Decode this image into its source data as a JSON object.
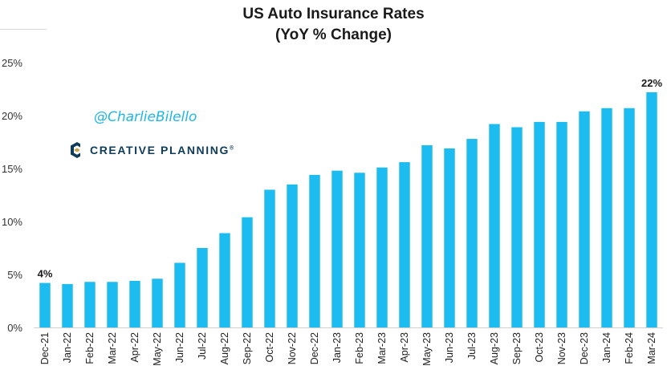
{
  "chart_data": {
    "type": "bar",
    "title": "US Auto Insurance Rates",
    "subtitle": "(YoY % Change)",
    "xlabel": "",
    "ylabel": "",
    "ylim": [
      0,
      25
    ],
    "yticks": [
      "0%",
      "5%",
      "10%",
      "15%",
      "20%",
      "25%"
    ],
    "grid": false,
    "bar_color": "#1cbcf0",
    "categories": [
      "Dec-21",
      "Jan-22",
      "Feb-22",
      "Mar-22",
      "Apr-22",
      "May-22",
      "Jun-22",
      "Jul-22",
      "Aug-22",
      "Sep-22",
      "Oct-22",
      "Nov-22",
      "Dec-22",
      "Jan-23",
      "Feb-23",
      "Mar-23",
      "Apr-23",
      "May-23",
      "Jun-23",
      "Jul-23",
      "Aug-23",
      "Sep-23",
      "Oct-23",
      "Nov-23",
      "Dec-23",
      "Jan-24",
      "Feb-24",
      "Mar-24"
    ],
    "values": [
      4.2,
      4.1,
      4.3,
      4.3,
      4.4,
      4.6,
      6.1,
      7.5,
      8.9,
      10.4,
      13.0,
      13.5,
      14.4,
      14.8,
      14.6,
      15.1,
      15.6,
      17.2,
      16.9,
      17.8,
      19.2,
      18.9,
      19.4,
      19.4,
      20.4,
      20.7,
      20.7,
      22.2
    ],
    "data_labels": [
      {
        "category": "Dec-21",
        "text": "4%"
      },
      {
        "category": "Mar-24",
        "text": "22%"
      }
    ]
  },
  "watermark": {
    "handle": "@CharlieBilello",
    "brand": "CREATIVE PLANNING",
    "brand_tm": "®",
    "brand_color": "#0e3c5a",
    "handle_color": "#1fb6e6"
  }
}
